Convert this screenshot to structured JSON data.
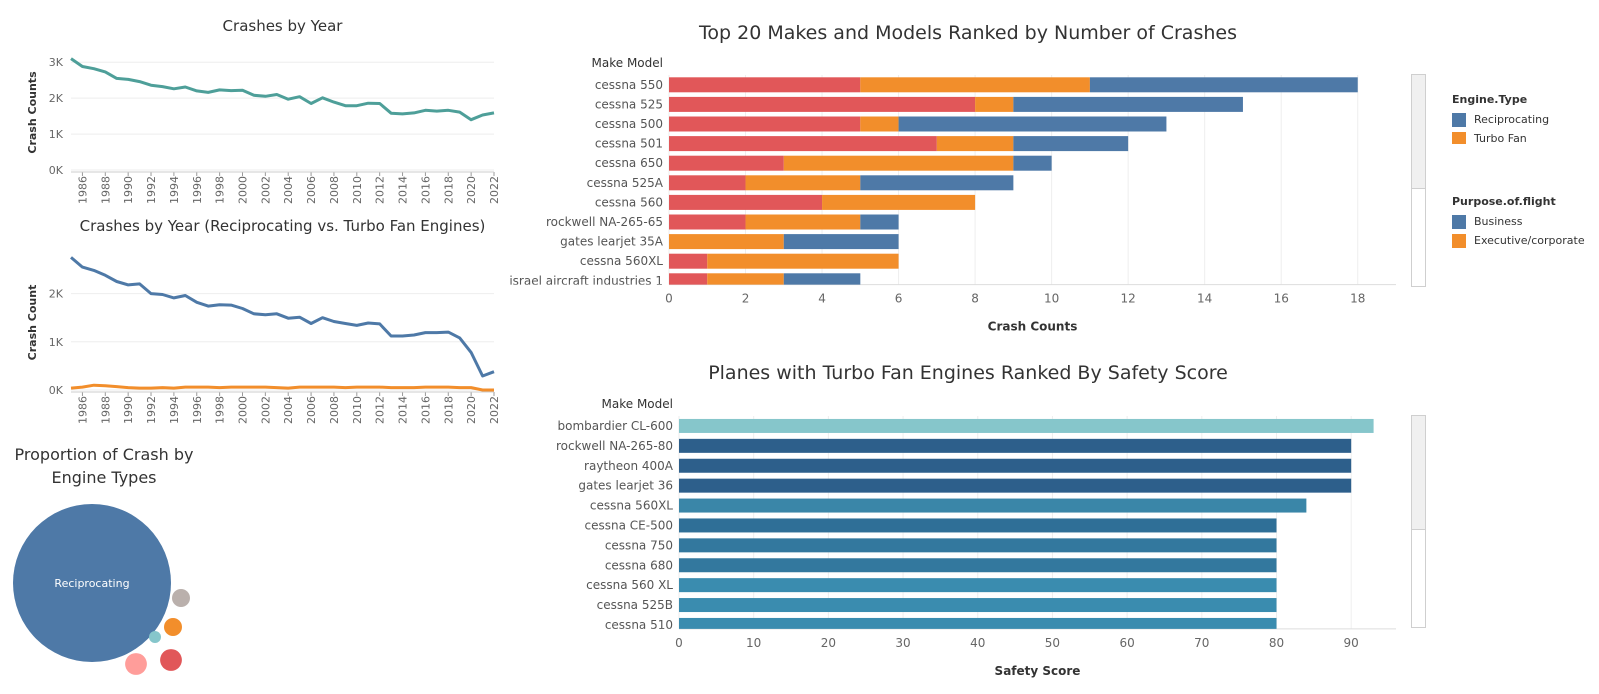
{
  "colors": {
    "teal_line": "#4e9f99",
    "reciprocating": "#4e79a7",
    "turbo_fan": "#f28e2b",
    "personal": "#e15759",
    "business": "#4e79a7",
    "executive": "#f28e2b",
    "grid": "#eeeeee",
    "safety_light": "#86c6cb",
    "safety_dark": "#2d5f8b",
    "safety_mid": "#3a86a8",
    "safety_blue": "#2f6f97"
  },
  "chart_data": [
    {
      "id": "crashes_by_year",
      "type": "line",
      "title": "Crashes by Year",
      "ylabel": "Crash Counts",
      "xlabel": "",
      "x": [
        1985,
        1986,
        1987,
        1988,
        1989,
        1990,
        1991,
        1992,
        1993,
        1994,
        1995,
        1996,
        1997,
        1998,
        1999,
        2000,
        2001,
        2002,
        2003,
        2004,
        2005,
        2006,
        2007,
        2008,
        2009,
        2010,
        2011,
        2012,
        2013,
        2014,
        2015,
        2016,
        2017,
        2018,
        2019,
        2020,
        2021,
        2022
      ],
      "xticks": [
        "1986",
        "1988",
        "1990",
        "1992",
        "1994",
        "1996",
        "1998",
        "2000",
        "2002",
        "2004",
        "2006",
        "2008",
        "2010",
        "2012",
        "2014",
        "2016",
        "2018",
        "2020",
        "2022"
      ],
      "yticks": [
        "0K",
        "1K",
        "2K",
        "3K"
      ],
      "ylim": [
        0,
        3200
      ],
      "series": [
        {
          "values": [
            3100,
            2880,
            2820,
            2730,
            2550,
            2520,
            2460,
            2360,
            2320,
            2260,
            2310,
            2200,
            2160,
            2230,
            2210,
            2220,
            2080,
            2050,
            2100,
            1970,
            2040,
            1850,
            2010,
            1890,
            1790,
            1790,
            1860,
            1850,
            1580,
            1560,
            1590,
            1660,
            1640,
            1660,
            1610,
            1400,
            1530,
            1590
          ]
        }
      ]
    },
    {
      "id": "crashes_by_year_engine",
      "type": "line",
      "title": "Crashes by Year (Reciprocating vs. Turbo Fan Engines)",
      "ylabel": "Crash Count",
      "xlabel": "",
      "x": [
        1985,
        1986,
        1987,
        1988,
        1989,
        1990,
        1991,
        1992,
        1993,
        1994,
        1995,
        1996,
        1997,
        1998,
        1999,
        2000,
        2001,
        2002,
        2003,
        2004,
        2005,
        2006,
        2007,
        2008,
        2009,
        2010,
        2011,
        2012,
        2013,
        2014,
        2015,
        2016,
        2017,
        2018,
        2019,
        2020,
        2021,
        2022
      ],
      "xticks": [
        "1986",
        "1988",
        "1990",
        "1992",
        "1994",
        "1996",
        "1998",
        "2000",
        "2002",
        "2004",
        "2006",
        "2008",
        "2010",
        "2012",
        "2014",
        "2016",
        "2018",
        "2020",
        "2022"
      ],
      "yticks": [
        "0K",
        "1K",
        "2K"
      ],
      "ylim": [
        0,
        2800
      ],
      "series": [
        {
          "values": [
            2750,
            2550,
            2480,
            2380,
            2250,
            2180,
            2200,
            2000,
            1980,
            1910,
            1960,
            1820,
            1740,
            1770,
            1760,
            1690,
            1580,
            1560,
            1580,
            1490,
            1510,
            1380,
            1500,
            1420,
            1380,
            1340,
            1390,
            1370,
            1120,
            1120,
            1140,
            1190,
            1190,
            1200,
            1080,
            780,
            290,
            380
          ]
        },
        {
          "values": [
            40,
            60,
            100,
            90,
            70,
            50,
            40,
            40,
            50,
            40,
            60,
            60,
            60,
            50,
            60,
            60,
            60,
            60,
            50,
            40,
            60,
            60,
            60,
            60,
            50,
            60,
            60,
            60,
            50,
            50,
            50,
            60,
            60,
            60,
            50,
            50,
            0,
            0
          ]
        }
      ]
    },
    {
      "id": "proportion_engine",
      "type": "bubble",
      "title": "Proportion of Crash by Engine Types",
      "bubbles": [
        {
          "label": "Reciprocating",
          "color": "#4e79a7",
          "size": 100
        },
        {
          "label": "",
          "color": "#bab0ac",
          "size": 1.3
        },
        {
          "label": "",
          "color": "#f28e2b",
          "size": 1.3
        },
        {
          "label": "",
          "color": "#86c6cb",
          "size": 0.12
        },
        {
          "label": "",
          "color": "#e15759",
          "size": 1.9
        },
        {
          "label": "",
          "color": "#ff9d9a",
          "size": 1.9
        }
      ]
    },
    {
      "id": "top20_makes",
      "type": "bar",
      "orientation": "horizontal",
      "stacked": true,
      "title": "Top 20 Makes and Models Ranked by Number of Crashes",
      "category_header": "Make Model",
      "xlabel": "Crash Counts",
      "xlim": [
        0,
        19
      ],
      "xticks": [
        0,
        2,
        4,
        6,
        8,
        10,
        12,
        14,
        16,
        18
      ],
      "categories": [
        "cessna 550",
        "cessna 525",
        "cessna 500",
        "cessna 501",
        "cessna 650",
        "cessna 525A",
        "cessna 560",
        "rockwell NA-265-65",
        "gates learjet 35A",
        "cessna 560XL",
        "israel aircraft industries 1"
      ],
      "series": [
        {
          "name": "",
          "color": "#e15759",
          "values": [
            5,
            8,
            5,
            7,
            3,
            2,
            4,
            2,
            0,
            1,
            1
          ]
        },
        {
          "name": "",
          "color": "#f28e2b",
          "values": [
            6,
            1,
            1,
            2,
            6,
            3,
            4,
            3,
            3,
            5,
            2
          ]
        },
        {
          "name": "",
          "color": "#4e79a7",
          "values": [
            7,
            6,
            7,
            3,
            1,
            4,
            0,
            1,
            3,
            0,
            2
          ]
        }
      ]
    },
    {
      "id": "safety_score",
      "type": "bar",
      "orientation": "horizontal",
      "title": "Planes with Turbo Fan Engines Ranked By Safety Score",
      "category_header": "Make Model",
      "xlabel": "Safety Score",
      "xlim": [
        0,
        96
      ],
      "xticks": [
        0,
        10,
        20,
        30,
        40,
        50,
        60,
        70,
        80,
        90
      ],
      "categories": [
        "bombardier CL-600",
        "rockwell NA-265-80",
        "raytheon 400A",
        "gates learjet 36",
        "cessna 560XL",
        "cessna CE-500",
        "cessna 750",
        "cessna 680",
        "cessna 560 XL",
        "cessna 525B",
        "cessna 510"
      ],
      "values": [
        93,
        90,
        90,
        90,
        84,
        80,
        80,
        80,
        80,
        80,
        80
      ],
      "colors": [
        "#86c6cb",
        "#2d5f8b",
        "#2d5f8b",
        "#2d5f8b",
        "#3a86a8",
        "#2f6f97",
        "#33789e",
        "#33789e",
        "#3a8caf",
        "#3a8caf",
        "#3a8caf"
      ]
    }
  ],
  "legends": {
    "engine": {
      "title": "Engine.Type",
      "items": [
        {
          "label": "Reciprocating",
          "color": "#4e79a7"
        },
        {
          "label": "Turbo Fan",
          "color": "#f28e2b"
        }
      ]
    },
    "purpose": {
      "title": "Purpose.of.flight",
      "items": [
        {
          "label": "Business",
          "color": "#4e79a7"
        },
        {
          "label": "Executive/corporate",
          "color": "#f28e2b"
        }
      ]
    }
  }
}
